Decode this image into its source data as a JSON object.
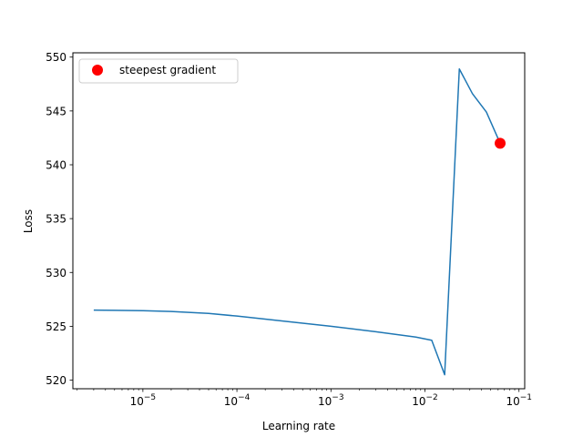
{
  "chart_data": {
    "type": "line",
    "title": "",
    "xlabel": "Learning rate",
    "ylabel": "Loss",
    "xscale": "log",
    "xlim": [
      1.8e-06,
      0.115
    ],
    "ylim": [
      519.2,
      550.4
    ],
    "x_ticks": [
      {
        "value": 1e-05,
        "base": "10",
        "exp": "−5"
      },
      {
        "value": 0.0001,
        "base": "10",
        "exp": "−4"
      },
      {
        "value": 0.001,
        "base": "10",
        "exp": "−3"
      },
      {
        "value": 0.01,
        "base": "10",
        "exp": "−2"
      },
      {
        "value": 0.1,
        "base": "10",
        "exp": "−1"
      }
    ],
    "y_ticks": [
      520,
      525,
      530,
      535,
      540,
      545,
      550
    ],
    "grid": false,
    "legend_position": "upper-left",
    "series": [
      {
        "type": "line",
        "color": "#1f77b4",
        "x": [
          3e-06,
          1e-05,
          2e-05,
          5e-05,
          0.0001,
          0.0003,
          0.001,
          0.003,
          0.008,
          0.0118,
          0.0162,
          0.0232,
          0.032,
          0.045,
          0.063
        ],
        "y": [
          526.5,
          526.45,
          526.38,
          526.2,
          525.95,
          525.5,
          525.0,
          524.5,
          524.0,
          523.7,
          520.5,
          548.9,
          546.6,
          544.9,
          542.0
        ]
      },
      {
        "type": "scatter",
        "name": "steepest gradient",
        "color": "#ff0000",
        "x": [
          0.063
        ],
        "y": [
          542.0
        ]
      }
    ]
  }
}
